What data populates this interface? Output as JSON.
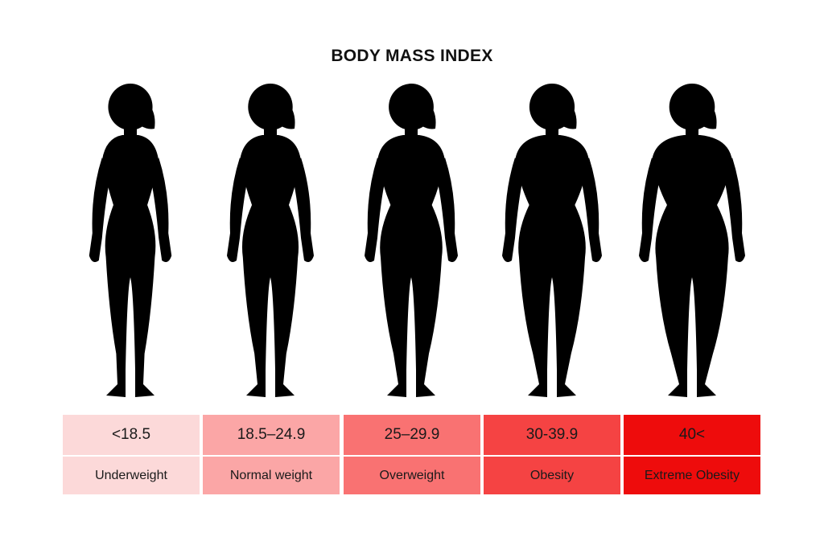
{
  "title": "BODY MASS INDEX",
  "figure_color": "#000000",
  "categories": [
    {
      "range": "<18.5",
      "label": "Underweight",
      "color": "#fcd9d9",
      "width_scale": 0.78,
      "hip_scale": 0.8
    },
    {
      "range": "18.5–24.9",
      "label": "Normal weight",
      "color": "#fba6a6",
      "width_scale": 0.85,
      "hip_scale": 0.9
    },
    {
      "range": "25–29.9",
      "label": "Overweight",
      "color": "#f97272",
      "width_scale": 0.95,
      "hip_scale": 1.0
    },
    {
      "range": "30-39.9",
      "label": "Obesity",
      "color": "#f54343",
      "width_scale": 1.05,
      "hip_scale": 1.08
    },
    {
      "range": "40<",
      "label": "Extreme Obesity",
      "color": "#ee0c0c",
      "width_scale": 1.15,
      "hip_scale": 1.18
    }
  ]
}
